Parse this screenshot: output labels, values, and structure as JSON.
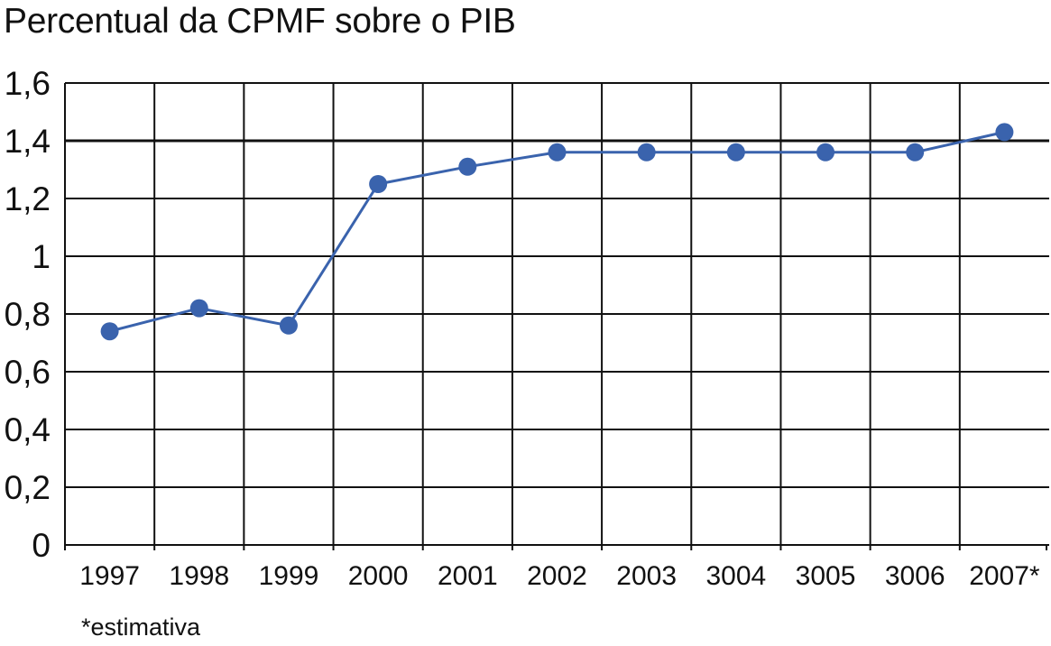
{
  "title": "Percentual da CPMF sobre o PIB",
  "footnote": "*estimativa",
  "chart_data": {
    "type": "line",
    "title": "Percentual da CPMF sobre o PIB",
    "xlabel": "",
    "ylabel": "",
    "categories": [
      "1997",
      "1998",
      "1999",
      "2000",
      "2001",
      "2002",
      "2003",
      "3004",
      "3005",
      "3006",
      "2007*"
    ],
    "series": [
      {
        "values": [
          0.74,
          0.82,
          0.76,
          1.25,
          1.31,
          1.36,
          1.36,
          1.36,
          1.36,
          1.36,
          1.43
        ],
        "color": "#3a63ad"
      }
    ],
    "ylim": [
      0,
      1.6
    ],
    "yticks": [
      "0",
      "0,2",
      "0,4",
      "0,6",
      "0,8",
      "1",
      "1,2",
      "1,4",
      "1,6"
    ],
    "grid": true,
    "legend": "none"
  }
}
